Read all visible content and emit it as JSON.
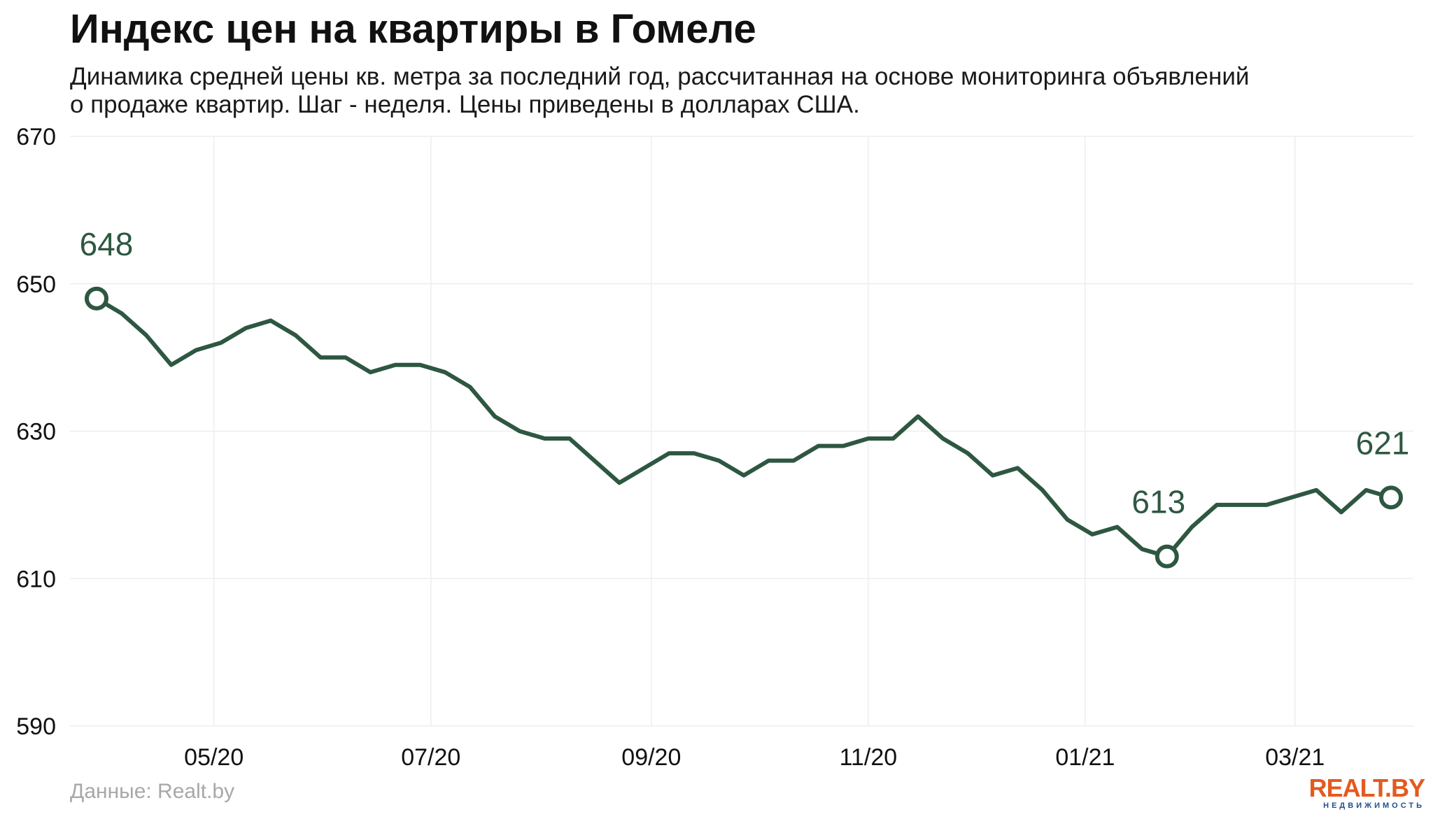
{
  "header": {
    "title": "Индекс цен на квартиры в Гомеле",
    "subtitle": "Динамика средней цены кв. метра за последний год, рассчитанная на основе мониторинга объявлений о продаже квартир. Шаг - неделя. Цены приведены в долларах США."
  },
  "footer": {
    "source": "Данные: Realt.by",
    "logo_main": "REALT.BY",
    "logo_sub": "НЕДВИЖИМОСТЬ"
  },
  "colors": {
    "line": "#2e5741",
    "grid": "#eeeeee",
    "axis_text": "#111111",
    "logo_orange": "#e35a1f",
    "logo_blue": "#1f4f8f"
  },
  "chart_data": {
    "type": "line",
    "title": "Индекс цен на квартиры в Гомеле",
    "xlabel": "",
    "ylabel": "",
    "ylim": [
      590,
      670
    ],
    "yticks": [
      590,
      610,
      630,
      650,
      670
    ],
    "x_start": "2020-03-29",
    "x_step_days": 7,
    "xticks": [
      {
        "label": "05/20",
        "date": "2020-05-01"
      },
      {
        "label": "07/20",
        "date": "2020-07-01"
      },
      {
        "label": "09/20",
        "date": "2020-09-01"
      },
      {
        "label": "11/20",
        "date": "2020-11-01"
      },
      {
        "label": "01/21",
        "date": "2021-01-01"
      },
      {
        "label": "03/21",
        "date": "2021-03-01"
      }
    ],
    "grid": true,
    "legend": "none",
    "series": [
      {
        "values": [
          648,
          646,
          643,
          639,
          641,
          642,
          644,
          645,
          643,
          640,
          640,
          638,
          639,
          639,
          638,
          636,
          632,
          630,
          629,
          629,
          626,
          623,
          625,
          627,
          627,
          626,
          624,
          626,
          626,
          628,
          628,
          629,
          629,
          632,
          629,
          627,
          624,
          625,
          622,
          618,
          616,
          617,
          614,
          613,
          617,
          620,
          620,
          620,
          621,
          622,
          619,
          622,
          621
        ]
      }
    ],
    "annotations": [
      {
        "index": 0,
        "value": 648,
        "label": "648",
        "position": "above"
      },
      {
        "index": 43,
        "value": 613,
        "label": "613",
        "position": "above"
      },
      {
        "index": 52,
        "value": 621,
        "label": "621",
        "position": "above"
      }
    ]
  }
}
